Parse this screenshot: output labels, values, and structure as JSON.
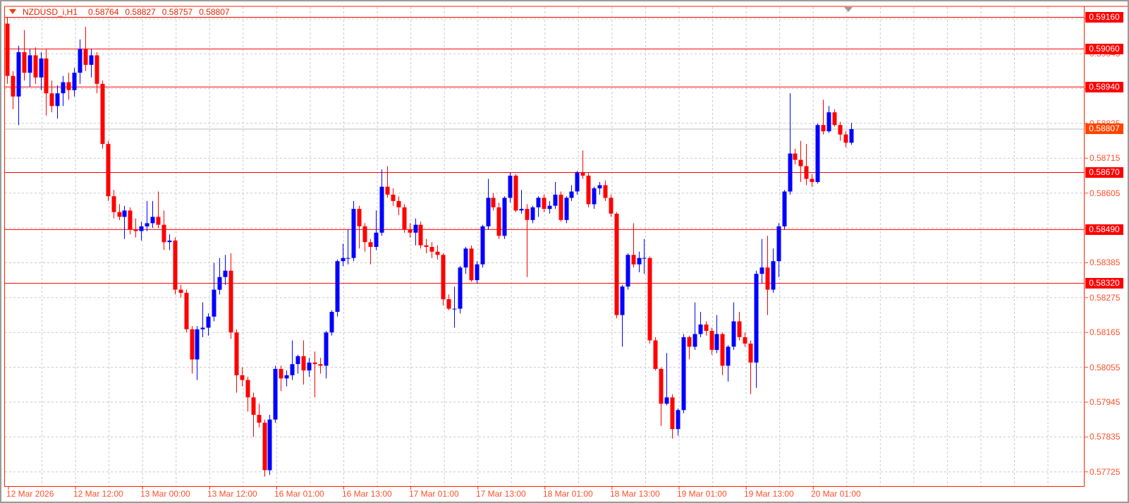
{
  "title": {
    "symbol": "NZDUSD_i,H1",
    "open": "0.58764",
    "high": "0.58827",
    "low": "0.58757",
    "close": "0.58807"
  },
  "colors": {
    "up_candle": "#0000ff",
    "down_candle": "#ff0000",
    "price_line": "#ff0000",
    "grid": "#c9c9c9",
    "axis_line": "#ff2000",
    "axis_text": "#ff4f2b",
    "hline_label_bg": "#ff0000",
    "current_label_bg": "#ff4500",
    "bid_line": "#b8b8b8",
    "title_text": "#e32400",
    "shift_marker": "#9a9a9a"
  },
  "y_axis": {
    "ticks": [
      "0.59155",
      "0.59045",
      "0.58935",
      "0.58825",
      "0.58715",
      "0.58605",
      "0.58495",
      "0.58385",
      "0.58275",
      "0.58165",
      "0.58055",
      "0.57945",
      "0.57835",
      "0.57725"
    ],
    "line_labels": [
      {
        "text": "0.59160",
        "price": 0.5916
      },
      {
        "text": "0.59060",
        "price": 0.5906
      },
      {
        "text": "0.58940",
        "price": 0.5894
      },
      {
        "text": "0.58670",
        "price": 0.5867
      },
      {
        "text": "0.58490",
        "price": 0.5849
      },
      {
        "text": "0.58320",
        "price": 0.5832
      }
    ],
    "current_label": {
      "text": "0.58807",
      "price": 0.58807
    }
  },
  "x_axis": {
    "labels": [
      "12 Mar 2026",
      "12 Mar 12:00",
      "13 Mar 00:00",
      "13 Mar 12:00",
      "16 Mar 01:00",
      "16 Mar 13:00",
      "17 Mar 01:00",
      "17 Mar 13:00",
      "18 Mar 01:00",
      "18 Mar 13:00",
      "19 Mar 01:00",
      "19 Mar 13:00",
      "20 Mar 01:00"
    ]
  },
  "chart_data": {
    "type": "candlestick",
    "title": "NZDUSD_i,H1",
    "symbol": "NZDUSD_i",
    "timeframe": "H1",
    "last_bar": {
      "open": 0.58764,
      "high": 0.58827,
      "low": 0.58757,
      "close": 0.58807
    },
    "current_price": 0.58807,
    "price_lines": [
      0.5916,
      0.5906,
      0.5894,
      0.5867,
      0.5849,
      0.5832
    ],
    "y_ticks": [
      0.57725,
      0.57835,
      0.57945,
      0.58055,
      0.58165,
      0.58275,
      0.58385,
      0.58495,
      0.58605,
      0.58715,
      0.58825,
      0.58935,
      0.59045,
      0.59155
    ],
    "x_tick_labels": [
      "12 Mar 2026",
      "12 Mar 12:00",
      "13 Mar 00:00",
      "13 Mar 12:00",
      "16 Mar 01:00",
      "16 Mar 13:00",
      "17 Mar 01:00",
      "17 Mar 13:00",
      "18 Mar 01:00",
      "18 Mar 13:00",
      "19 Mar 01:00",
      "19 Mar 13:00",
      "20 Mar 01:00"
    ],
    "ylim": [
      0.5768,
      0.59192
    ],
    "grid": true,
    "candles": [
      [
        0.5914,
        0.5916,
        0.5895,
        0.58975
      ],
      [
        0.58975,
        0.5899,
        0.5887,
        0.5891
      ],
      [
        0.5891,
        0.5907,
        0.5882,
        0.5905
      ],
      [
        0.5905,
        0.5912,
        0.5896,
        0.58985
      ],
      [
        0.58985,
        0.5906,
        0.5894,
        0.5904
      ],
      [
        0.5904,
        0.59065,
        0.5895,
        0.5897
      ],
      [
        0.5897,
        0.5905,
        0.5893,
        0.5903
      ],
      [
        0.5903,
        0.5906,
        0.5885,
        0.5892
      ],
      [
        0.5892,
        0.5896,
        0.5886,
        0.5888
      ],
      [
        0.5888,
        0.58945,
        0.5884,
        0.5892
      ],
      [
        0.5892,
        0.58975,
        0.5888,
        0.58955
      ],
      [
        0.58955,
        0.58985,
        0.589,
        0.5893
      ],
      [
        0.5893,
        0.59,
        0.5891,
        0.58985
      ],
      [
        0.58985,
        0.5909,
        0.5895,
        0.5906
      ],
      [
        0.5906,
        0.5913,
        0.5899,
        0.5901
      ],
      [
        0.5901,
        0.5906,
        0.5897,
        0.5904
      ],
      [
        0.5904,
        0.5905,
        0.5892,
        0.5895
      ],
      [
        0.5895,
        0.5896,
        0.58745,
        0.5876
      ],
      [
        0.5876,
        0.5877,
        0.5858,
        0.58595
      ],
      [
        0.58595,
        0.58615,
        0.58525,
        0.58545
      ],
      [
        0.58545,
        0.5857,
        0.5852,
        0.5853
      ],
      [
        0.5853,
        0.58565,
        0.5846,
        0.5855
      ],
      [
        0.5855,
        0.5856,
        0.58475,
        0.5849
      ],
      [
        0.5849,
        0.58525,
        0.58465,
        0.58485
      ],
      [
        0.58485,
        0.58515,
        0.58455,
        0.585
      ],
      [
        0.585,
        0.5858,
        0.58485,
        0.5851
      ],
      [
        0.5851,
        0.5858,
        0.58495,
        0.5853
      ],
      [
        0.5853,
        0.5861,
        0.58495,
        0.58505
      ],
      [
        0.58505,
        0.5855,
        0.58425,
        0.5845
      ],
      [
        0.5845,
        0.58475,
        0.58425,
        0.58455
      ],
      [
        0.58455,
        0.58465,
        0.58285,
        0.583
      ],
      [
        0.583,
        0.58315,
        0.58275,
        0.5829
      ],
      [
        0.5829,
        0.583,
        0.58165,
        0.58175
      ],
      [
        0.58175,
        0.58185,
        0.58035,
        0.5808
      ],
      [
        0.5808,
        0.58185,
        0.58015,
        0.58175
      ],
      [
        0.58175,
        0.5826,
        0.5815,
        0.5818
      ],
      [
        0.5818,
        0.58225,
        0.58155,
        0.58215
      ],
      [
        0.58215,
        0.58385,
        0.582,
        0.583
      ],
      [
        0.583,
        0.584,
        0.58285,
        0.5834
      ],
      [
        0.5834,
        0.5841,
        0.58315,
        0.5836
      ],
      [
        0.5836,
        0.58415,
        0.58145,
        0.58165
      ],
      [
        0.58165,
        0.58175,
        0.57975,
        0.5803
      ],
      [
        0.5803,
        0.58055,
        0.57995,
        0.58015
      ],
      [
        0.58015,
        0.58025,
        0.57915,
        0.5796
      ],
      [
        0.5796,
        0.57975,
        0.57835,
        0.57905
      ],
      [
        0.57905,
        0.5794,
        0.57865,
        0.5788
      ],
      [
        0.5788,
        0.5789,
        0.5771,
        0.5773
      ],
      [
        0.5773,
        0.57905,
        0.57715,
        0.5789
      ],
      [
        0.5789,
        0.5806,
        0.5788,
        0.5805
      ],
      [
        0.5805,
        0.5806,
        0.5798,
        0.5802
      ],
      [
        0.5802,
        0.58045,
        0.57995,
        0.5803
      ],
      [
        0.5803,
        0.5814,
        0.58015,
        0.58065
      ],
      [
        0.58065,
        0.58095,
        0.58035,
        0.5809
      ],
      [
        0.5809,
        0.5814,
        0.58,
        0.58045
      ],
      [
        0.58045,
        0.58085,
        0.58025,
        0.5807
      ],
      [
        0.5807,
        0.58105,
        0.5796,
        0.58065
      ],
      [
        0.58065,
        0.58085,
        0.58035,
        0.5806
      ],
      [
        0.5806,
        0.5817,
        0.5802,
        0.58165
      ],
      [
        0.58165,
        0.58235,
        0.58155,
        0.5823
      ],
      [
        0.5823,
        0.58395,
        0.58215,
        0.5839
      ],
      [
        0.5839,
        0.58445,
        0.58375,
        0.584
      ],
      [
        0.584,
        0.5849,
        0.5838,
        0.584
      ],
      [
        0.584,
        0.5858,
        0.5839,
        0.58555
      ],
      [
        0.58555,
        0.58565,
        0.5843,
        0.585
      ],
      [
        0.585,
        0.5851,
        0.5842,
        0.5845
      ],
      [
        0.5845,
        0.5846,
        0.5838,
        0.58435
      ],
      [
        0.58435,
        0.5855,
        0.58425,
        0.5848
      ],
      [
        0.5848,
        0.5868,
        0.5847,
        0.58625
      ],
      [
        0.58625,
        0.5869,
        0.5859,
        0.586
      ],
      [
        0.586,
        0.5862,
        0.58565,
        0.5858
      ],
      [
        0.5858,
        0.58595,
        0.58535,
        0.5856
      ],
      [
        0.5856,
        0.5857,
        0.5848,
        0.5849
      ],
      [
        0.5849,
        0.5851,
        0.58465,
        0.5848
      ],
      [
        0.5848,
        0.58525,
        0.5844,
        0.58505
      ],
      [
        0.58505,
        0.58515,
        0.5843,
        0.5844
      ],
      [
        0.5844,
        0.5846,
        0.58415,
        0.58435
      ],
      [
        0.58435,
        0.5845,
        0.584,
        0.5842
      ],
      [
        0.5842,
        0.5844,
        0.58395,
        0.5841
      ],
      [
        0.5841,
        0.58415,
        0.5825,
        0.5827
      ],
      [
        0.5827,
        0.58285,
        0.58235,
        0.5824
      ],
      [
        0.5824,
        0.5831,
        0.5818,
        0.5824
      ],
      [
        0.5824,
        0.58375,
        0.58225,
        0.5837
      ],
      [
        0.5837,
        0.58435,
        0.5835,
        0.5843
      ],
      [
        0.5843,
        0.5844,
        0.58325,
        0.5833
      ],
      [
        0.5833,
        0.5839,
        0.5832,
        0.5838
      ],
      [
        0.5838,
        0.58505,
        0.5837,
        0.585
      ],
      [
        0.585,
        0.5865,
        0.5849,
        0.5859
      ],
      [
        0.5859,
        0.58605,
        0.5855,
        0.5856
      ],
      [
        0.5856,
        0.58575,
        0.5846,
        0.5847
      ],
      [
        0.5847,
        0.58595,
        0.5846,
        0.5859
      ],
      [
        0.5859,
        0.5867,
        0.58575,
        0.5866
      ],
      [
        0.5866,
        0.58665,
        0.58545,
        0.5855
      ],
      [
        0.5855,
        0.58615,
        0.5854,
        0.58555
      ],
      [
        0.58555,
        0.5857,
        0.5834,
        0.5852
      ],
      [
        0.5852,
        0.58565,
        0.5851,
        0.5856
      ],
      [
        0.5856,
        0.58595,
        0.5853,
        0.5859
      ],
      [
        0.5859,
        0.586,
        0.58545,
        0.58555
      ],
      [
        0.58555,
        0.5858,
        0.5854,
        0.58565
      ],
      [
        0.58565,
        0.5864,
        0.58555,
        0.586
      ],
      [
        0.586,
        0.5861,
        0.58515,
        0.5852
      ],
      [
        0.5852,
        0.58595,
        0.5851,
        0.5859
      ],
      [
        0.5859,
        0.5863,
        0.5858,
        0.5861
      ],
      [
        0.5861,
        0.58675,
        0.586,
        0.5867
      ],
      [
        0.5867,
        0.5874,
        0.5865,
        0.5866
      ],
      [
        0.5866,
        0.5867,
        0.5856,
        0.5857
      ],
      [
        0.5857,
        0.58625,
        0.58555,
        0.5862
      ],
      [
        0.5862,
        0.5864,
        0.586,
        0.5863
      ],
      [
        0.5863,
        0.58645,
        0.5858,
        0.5859
      ],
      [
        0.5859,
        0.586,
        0.5853,
        0.5854
      ],
      [
        0.5854,
        0.58545,
        0.5821,
        0.5822
      ],
      [
        0.5822,
        0.58315,
        0.5812,
        0.5831
      ],
      [
        0.5831,
        0.58415,
        0.583,
        0.5841
      ],
      [
        0.5841,
        0.5851,
        0.5837,
        0.5838
      ],
      [
        0.5838,
        0.5842,
        0.58355,
        0.584
      ],
      [
        0.584,
        0.5846,
        0.5835,
        0.584
      ],
      [
        0.584,
        0.58405,
        0.5813,
        0.5814
      ],
      [
        0.5814,
        0.5815,
        0.58045,
        0.5805
      ],
      [
        0.5805,
        0.58055,
        0.5787,
        0.5794
      ],
      [
        0.5794,
        0.581,
        0.57935,
        0.5796
      ],
      [
        0.5796,
        0.5797,
        0.5783,
        0.5786
      ],
      [
        0.5786,
        0.57925,
        0.5784,
        0.5792
      ],
      [
        0.5792,
        0.5816,
        0.5791,
        0.5815
      ],
      [
        0.5815,
        0.58155,
        0.5808,
        0.5812
      ],
      [
        0.5812,
        0.5826,
        0.5811,
        0.5816
      ],
      [
        0.5816,
        0.5823,
        0.5815,
        0.5819
      ],
      [
        0.5819,
        0.582,
        0.58155,
        0.5817
      ],
      [
        0.5817,
        0.5818,
        0.58095,
        0.5811
      ],
      [
        0.5811,
        0.5822,
        0.581,
        0.5816
      ],
      [
        0.5816,
        0.58165,
        0.5803,
        0.5806
      ],
      [
        0.5806,
        0.58125,
        0.5801,
        0.5812
      ],
      [
        0.5812,
        0.5826,
        0.5811,
        0.582
      ],
      [
        0.582,
        0.5823,
        0.5814,
        0.5815
      ],
      [
        0.5815,
        0.58165,
        0.5812,
        0.5813
      ],
      [
        0.5813,
        0.5814,
        0.5797,
        0.5807
      ],
      [
        0.5807,
        0.5836,
        0.5799,
        0.5835
      ],
      [
        0.5835,
        0.5846,
        0.5832,
        0.5837
      ],
      [
        0.5837,
        0.5847,
        0.5822,
        0.583
      ],
      [
        0.583,
        0.5843,
        0.5829,
        0.5839
      ],
      [
        0.5839,
        0.5851,
        0.5834,
        0.585
      ],
      [
        0.585,
        0.58615,
        0.5849,
        0.5861
      ],
      [
        0.5861,
        0.5892,
        0.586,
        0.5873
      ],
      [
        0.5873,
        0.58745,
        0.58695,
        0.5871
      ],
      [
        0.5871,
        0.5877,
        0.5864,
        0.5869
      ],
      [
        0.5869,
        0.5876,
        0.5863,
        0.5865
      ],
      [
        0.5865,
        0.58665,
        0.58625,
        0.5864
      ],
      [
        0.5864,
        0.58825,
        0.58635,
        0.5882
      ],
      [
        0.5882,
        0.589,
        0.5879,
        0.588
      ],
      [
        0.588,
        0.5888,
        0.58795,
        0.5886
      ],
      [
        0.5886,
        0.5887,
        0.58815,
        0.5882
      ],
      [
        0.5882,
        0.5883,
        0.5877,
        0.5879
      ],
      [
        0.5879,
        0.588,
        0.5875,
        0.58764
      ],
      [
        0.58764,
        0.58827,
        0.58757,
        0.58807
      ]
    ]
  }
}
